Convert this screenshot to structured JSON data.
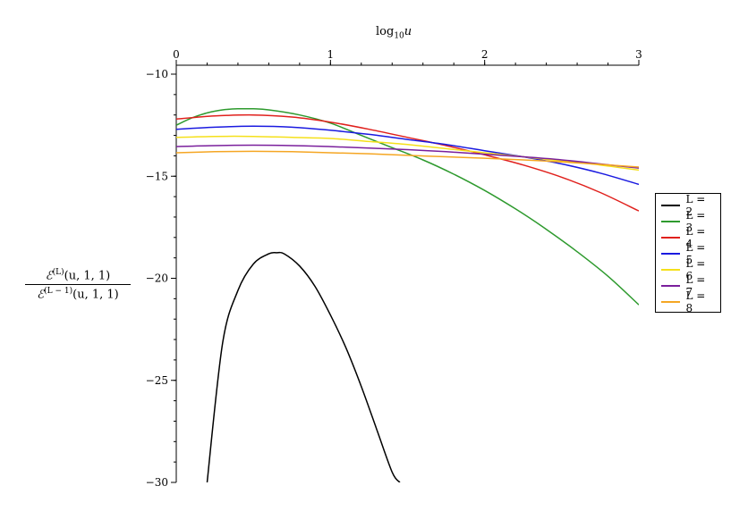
{
  "chart_data": {
    "type": "line",
    "title": "",
    "xlabel": "log10u",
    "xlabel_parts": {
      "pre": "log",
      "sub": "10",
      "post": "u"
    },
    "ylabel": {
      "numerator": "ℰ(L)(u, 1, 1)",
      "denominator": "ℰ(L − 1)(u, 1, 1)",
      "num_parts": {
        "base": "ℰ",
        "sup": "(L)",
        "rest": "(u, 1, 1)"
      },
      "den_parts": {
        "base": "ℰ",
        "sup": "(L − 1)",
        "rest": "(u, 1, 1)"
      }
    },
    "xlim": [
      0,
      3
    ],
    "ylim": [
      -30,
      -10
    ],
    "xticks": [
      "0",
      "1",
      "2",
      "3"
    ],
    "yticks": [
      "−10",
      "−15",
      "−20",
      "−25",
      "−30"
    ],
    "x_axis_position": "top",
    "grid": false,
    "legend_position": "right",
    "series": [
      {
        "name": "L = 2",
        "color": "#000000",
        "x": [
          0.2,
          0.3,
          0.4,
          0.5,
          0.6,
          0.65,
          0.7,
          0.8,
          0.9,
          1.0,
          1.1,
          1.2,
          1.3,
          1.4,
          1.45
        ],
        "y": [
          -30.0,
          -23.2,
          -20.6,
          -19.3,
          -18.8,
          -18.75,
          -18.8,
          -19.4,
          -20.4,
          -21.8,
          -23.4,
          -25.3,
          -27.4,
          -29.5,
          -30.0
        ]
      },
      {
        "name": "L = 3",
        "color": "#2e9a2e",
        "x": [
          0.0,
          0.1,
          0.2,
          0.3,
          0.4,
          0.5,
          0.6,
          0.8,
          1.0,
          1.2,
          1.4,
          1.6,
          1.8,
          2.0,
          2.2,
          2.4,
          2.6,
          2.8,
          3.0
        ],
        "y": [
          -12.5,
          -12.15,
          -11.9,
          -11.75,
          -11.7,
          -11.7,
          -11.75,
          -12.0,
          -12.4,
          -13.0,
          -13.6,
          -14.2,
          -14.9,
          -15.7,
          -16.6,
          -17.6,
          -18.7,
          -19.9,
          -21.3
        ]
      },
      {
        "name": "L = 4",
        "color": "#e0201c",
        "x": [
          0.0,
          0.25,
          0.5,
          0.75,
          1.0,
          1.25,
          1.5,
          1.75,
          2.0,
          2.25,
          2.5,
          2.75,
          3.0
        ],
        "y": [
          -12.2,
          -12.05,
          -12.0,
          -12.1,
          -12.35,
          -12.7,
          -13.1,
          -13.5,
          -13.95,
          -14.45,
          -15.05,
          -15.8,
          -16.7
        ]
      },
      {
        "name": "L = 5",
        "color": "#1a1ae0",
        "x": [
          0.0,
          0.25,
          0.5,
          0.75,
          1.0,
          1.25,
          1.5,
          1.75,
          2.0,
          2.25,
          2.5,
          2.75,
          3.0
        ],
        "y": [
          -12.7,
          -12.6,
          -12.55,
          -12.6,
          -12.75,
          -12.95,
          -13.2,
          -13.45,
          -13.75,
          -14.05,
          -14.4,
          -14.85,
          -15.4
        ]
      },
      {
        "name": "L = 6",
        "color": "#f5e01a",
        "x": [
          0.0,
          0.25,
          0.5,
          0.75,
          1.0,
          1.25,
          1.5,
          1.75,
          2.0,
          2.25,
          2.5,
          2.75,
          3.0
        ],
        "y": [
          -13.1,
          -13.05,
          -13.05,
          -13.1,
          -13.15,
          -13.3,
          -13.45,
          -13.65,
          -13.85,
          -14.05,
          -14.25,
          -14.45,
          -14.7
        ]
      },
      {
        "name": "L = 7",
        "color": "#7a1f9c",
        "x": [
          0.0,
          0.25,
          0.5,
          0.75,
          1.0,
          1.25,
          1.5,
          1.75,
          2.0,
          2.25,
          2.5,
          2.75,
          3.0
        ],
        "y": [
          -13.55,
          -13.5,
          -13.48,
          -13.5,
          -13.55,
          -13.62,
          -13.7,
          -13.8,
          -13.92,
          -14.05,
          -14.2,
          -14.4,
          -14.6
        ]
      },
      {
        "name": "L = 8",
        "color": "#f5a623",
        "x": [
          0.0,
          0.25,
          0.5,
          0.75,
          1.0,
          1.25,
          1.5,
          1.75,
          2.0,
          2.25,
          2.5,
          2.75,
          3.0
        ],
        "y": [
          -13.85,
          -13.8,
          -13.78,
          -13.8,
          -13.85,
          -13.9,
          -13.98,
          -14.05,
          -14.12,
          -14.2,
          -14.3,
          -14.42,
          -14.55
        ]
      }
    ]
  }
}
